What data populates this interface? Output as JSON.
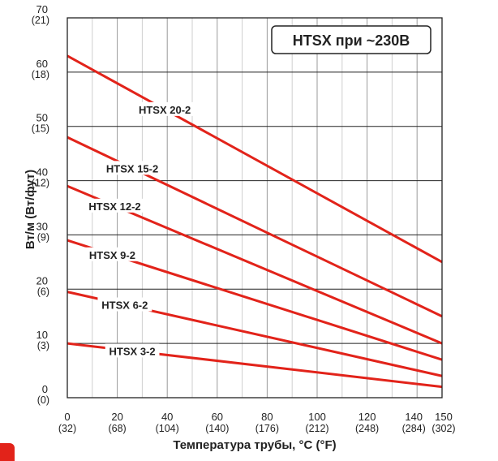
{
  "chart_data": {
    "type": "line",
    "title": "HTSX при ~230В",
    "xlabel": "Температура трубы, °C (°F)",
    "ylabel": "Вт/м (Вт/фут)",
    "xlim": [
      0,
      150
    ],
    "ylim": [
      0,
      70
    ],
    "grid": true,
    "x_ticks": [
      0,
      20,
      40,
      60,
      80,
      100,
      120,
      140,
      150
    ],
    "x_tick_labels_secondary": [
      "(32)",
      "(68)",
      "(104)",
      "(140)",
      "(176)",
      "(212)",
      "(248)",
      "(284)",
      "(302)"
    ],
    "y_ticks": [
      0,
      10,
      20,
      30,
      40,
      50,
      60,
      70
    ],
    "y_tick_labels_secondary": [
      "(0)",
      "(3)",
      "(6)",
      "(9)",
      "(12)",
      "(15)",
      "(18)",
      "(21)"
    ],
    "line_color": "#e2231a",
    "series": [
      {
        "name": "HTSX 20-2",
        "x": [
          0,
          150
        ],
        "y": [
          63,
          25
        ],
        "label_x": 39
      },
      {
        "name": "HTSX 15-2",
        "x": [
          0,
          150
        ],
        "y": [
          48,
          15
        ],
        "label_x": 26
      },
      {
        "name": "HTSX 12-2",
        "x": [
          0,
          150
        ],
        "y": [
          39,
          10
        ],
        "label_x": 19
      },
      {
        "name": "HTSX 9-2",
        "x": [
          0,
          150
        ],
        "y": [
          29,
          7
        ],
        "label_x": 18
      },
      {
        "name": "HTSX 6-2",
        "x": [
          0,
          150
        ],
        "y": [
          19.5,
          4
        ],
        "label_x": 23
      },
      {
        "name": "HTSX 3-2",
        "x": [
          0,
          150
        ],
        "y": [
          10,
          2
        ],
        "label_x": 26
      }
    ]
  }
}
